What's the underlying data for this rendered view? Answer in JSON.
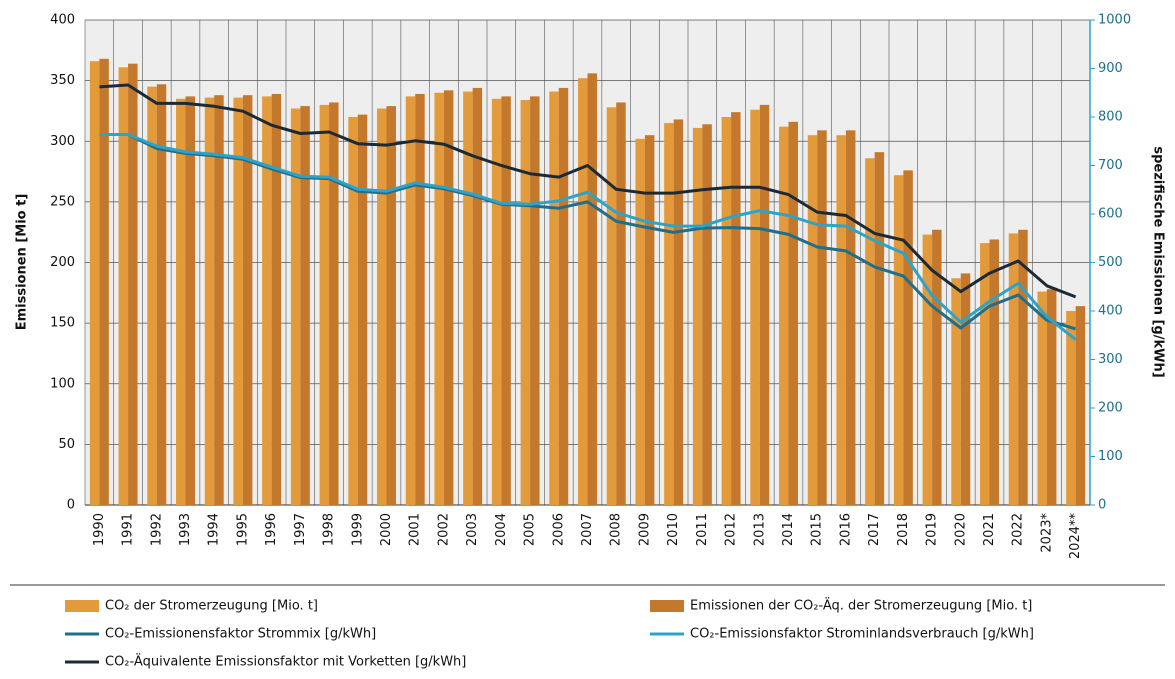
{
  "chart_data": {
    "type": "bar",
    "y_label": "Emissionen [Mio t]",
    "y2_label": "spezifische Emissionen [g/kWh]",
    "categories": [
      "1990",
      "1991",
      "1992",
      "1993",
      "1994",
      "1995",
      "1996",
      "1997",
      "1998",
      "1999",
      "2000",
      "2001",
      "2002",
      "2003",
      "2004",
      "2005",
      "2006",
      "2007",
      "2008",
      "2009",
      "2010",
      "2011",
      "2012",
      "2013",
      "2014",
      "2015",
      "2016",
      "2017",
      "2018",
      "2019",
      "2020",
      "2021",
      "2022",
      "2023*",
      "2024**"
    ],
    "ylim": [
      0,
      400
    ],
    "yticks": [
      0,
      50,
      100,
      150,
      200,
      250,
      300,
      350,
      400
    ],
    "y2lim": [
      0,
      1000
    ],
    "y2ticks": [
      0,
      100,
      200,
      300,
      400,
      500,
      600,
      700,
      800,
      900,
      1000
    ],
    "grid": true,
    "series": [
      {
        "name": "CO₂ der Stromerzeugung [Mio. t]",
        "type": "bar",
        "color": "#e39a3b",
        "values": [
          366,
          361,
          345,
          335,
          336,
          336,
          337,
          327,
          330,
          320,
          327,
          337,
          340,
          341,
          335,
          334,
          341,
          352,
          328,
          302,
          315,
          311,
          320,
          326,
          312,
          305,
          305,
          286,
          272,
          223,
          187,
          216,
          224,
          176,
          160
        ]
      },
      {
        "name": "Emissionen der CO₂-Äq. der Stromerzeugung [Mio. t]",
        "type": "bar",
        "color": "#c4782c",
        "values": [
          368,
          364,
          347,
          337,
          338,
          338,
          339,
          329,
          332,
          322,
          329,
          339,
          342,
          344,
          337,
          337,
          344,
          356,
          332,
          305,
          318,
          314,
          324,
          330,
          316,
          309,
          309,
          291,
          276,
          227,
          191,
          219,
          227,
          178,
          164
        ]
      },
      {
        "name": "CO₂-Emissionensfaktor Strommix [g/kWh]",
        "type": "line",
        "axis": "y2",
        "color": "#1f6e8c",
        "values": [
          764,
          764,
          735,
          725,
          720,
          713,
          693,
          675,
          673,
          647,
          643,
          660,
          652,
          638,
          620,
          617,
          612,
          625,
          585,
          573,
          562,
          571,
          572,
          570,
          558,
          532,
          524,
          491,
          472,
          410,
          365,
          410,
          433,
          381,
          363
        ]
      },
      {
        "name": "CO₂-Emissionsfaktor Strominlandsverbrauch [g/kWh]",
        "type": "line",
        "axis": "y2",
        "color": "#2ea3c8",
        "values": [
          764,
          764,
          740,
          728,
          723,
          716,
          697,
          678,
          676,
          651,
          647,
          664,
          655,
          641,
          622,
          620,
          627,
          645,
          603,
          585,
          575,
          575,
          594,
          607,
          597,
          578,
          575,
          545,
          519,
          432,
          377,
          420,
          457,
          388,
          341
        ]
      },
      {
        "name": "CO₂-Äquivalente Emissionsfaktor mit Vorketten [g/kWh]",
        "type": "line",
        "axis": "y2",
        "color": "#1b2a35",
        "values": [
          862,
          866,
          828,
          828,
          822,
          812,
          783,
          766,
          769,
          745,
          742,
          751,
          744,
          720,
          700,
          683,
          676,
          700,
          651,
          643,
          643,
          650,
          655,
          655,
          640,
          604,
          597,
          560,
          546,
          484,
          440,
          478,
          503,
          452,
          429
        ]
      }
    ]
  }
}
